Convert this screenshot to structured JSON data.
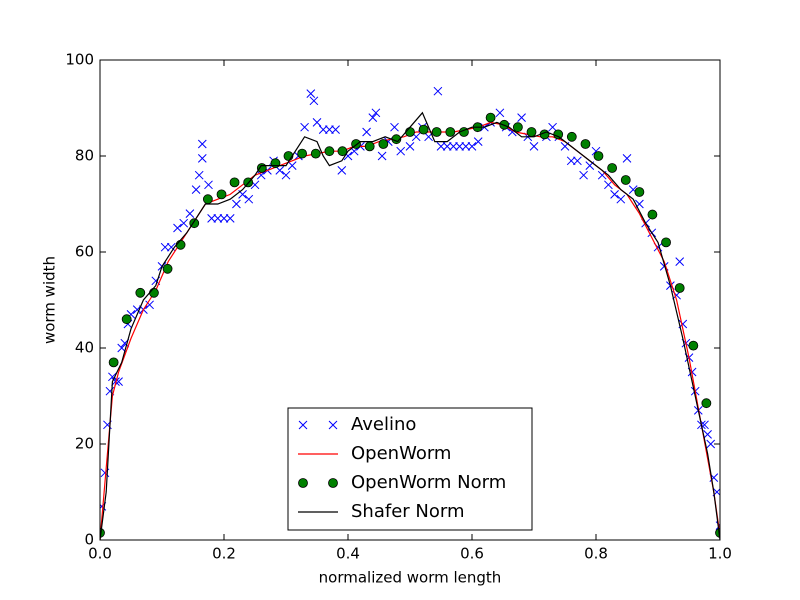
{
  "chart_data": {
    "type": "line",
    "xlabel": "normalized worm length",
    "ylabel": "worm width",
    "xlim": [
      0,
      1
    ],
    "ylim": [
      0,
      100
    ],
    "xticks": [
      {
        "value": 0,
        "label": "0.0"
      },
      0.2,
      0.4,
      0.6,
      0.8,
      {
        "value": 1,
        "label": "1.0"
      }
    ],
    "yticks": [
      0,
      20,
      40,
      60,
      80,
      100
    ],
    "legend": "lower center",
    "series": [
      {
        "name": "Avelino",
        "color": "#0000ff",
        "style": "x",
        "x": [
          0.003,
          0.008,
          0.012,
          0.016,
          0.02,
          0.025,
          0.03,
          0.035,
          0.04,
          0.045,
          0.05,
          0.06,
          0.07,
          0.08,
          0.09,
          0.1,
          0.105,
          0.115,
          0.125,
          0.135,
          0.145,
          0.155,
          0.16,
          0.165,
          0.165,
          0.175,
          0.18,
          0.19,
          0.2,
          0.21,
          0.22,
          0.23,
          0.24,
          0.25,
          0.26,
          0.27,
          0.28,
          0.29,
          0.3,
          0.31,
          0.32,
          0.33,
          0.34,
          0.345,
          0.35,
          0.36,
          0.37,
          0.38,
          0.39,
          0.4,
          0.41,
          0.42,
          0.43,
          0.44,
          0.445,
          0.455,
          0.465,
          0.475,
          0.485,
          0.5,
          0.51,
          0.52,
          0.53,
          0.545,
          0.55,
          0.56,
          0.57,
          0.58,
          0.59,
          0.6,
          0.61,
          0.62,
          0.63,
          0.645,
          0.655,
          0.665,
          0.68,
          0.69,
          0.7,
          0.72,
          0.73,
          0.74,
          0.75,
          0.76,
          0.77,
          0.78,
          0.79,
          0.8,
          0.81,
          0.82,
          0.83,
          0.84,
          0.85,
          0.86,
          0.87,
          0.88,
          0.89,
          0.9,
          0.91,
          0.92,
          0.93,
          0.935,
          0.94,
          0.945,
          0.95,
          0.955,
          0.96,
          0.965,
          0.97,
          0.975,
          0.98,
          0.985,
          0.99,
          0.995,
          1.0
        ],
        "values": [
          7,
          14,
          24,
          31,
          34,
          33,
          33,
          40,
          41,
          45,
          47,
          48,
          48,
          49,
          54,
          57,
          61,
          61,
          65,
          66,
          68,
          73,
          76,
          82.5,
          79.5,
          74,
          67,
          67,
          67,
          67,
          70,
          72,
          71,
          74,
          76,
          77,
          79,
          77,
          76,
          78,
          80,
          86,
          93,
          91.5,
          87,
          85.5,
          85.5,
          85.5,
          77,
          80,
          81,
          82,
          85,
          88,
          89,
          80,
          83,
          86,
          81,
          82,
          84,
          86,
          84,
          93.5,
          82,
          82,
          82,
          82,
          82,
          82,
          83,
          86,
          87,
          89,
          86,
          85,
          88,
          84,
          82,
          84,
          86,
          84,
          82,
          79,
          79,
          76,
          78,
          81,
          76,
          74,
          72,
          71,
          79.5,
          73,
          70,
          66,
          64,
          61,
          57,
          53,
          51,
          58,
          45,
          41,
          38,
          35,
          31,
          27,
          24,
          24,
          22,
          20,
          13,
          10,
          3
        ]
      },
      {
        "name": "OpenWorm",
        "color": "#ff0000",
        "style": "line",
        "x": [
          0,
          0.01,
          0.02,
          0.03,
          0.05,
          0.07,
          0.09,
          0.11,
          0.13,
          0.15,
          0.17,
          0.19,
          0.21,
          0.23,
          0.25,
          0.27,
          0.29,
          0.31,
          0.33,
          0.35,
          0.37,
          0.39,
          0.41,
          0.43,
          0.45,
          0.47,
          0.49,
          0.51,
          0.53,
          0.55,
          0.57,
          0.59,
          0.61,
          0.63,
          0.65,
          0.67,
          0.69,
          0.71,
          0.73,
          0.75,
          0.77,
          0.79,
          0.81,
          0.83,
          0.85,
          0.87,
          0.89,
          0.91,
          0.93,
          0.95,
          0.97,
          0.99,
          1.0
        ],
        "values": [
          0,
          15,
          30,
          35,
          42,
          48,
          52,
          58,
          62,
          66,
          70,
          71,
          72,
          74,
          76,
          77,
          78,
          79,
          80,
          80.5,
          81,
          81,
          82,
          82,
          83,
          83.5,
          84,
          85,
          85,
          85,
          85,
          85.5,
          86,
          87,
          86.5,
          85,
          84.5,
          84,
          84,
          83,
          81,
          79,
          77,
          74,
          72,
          68,
          63,
          58,
          50,
          38,
          24,
          10,
          1
        ]
      },
      {
        "name": "OpenWorm Norm",
        "color": "#008000",
        "style": "o",
        "x": [
          0,
          0.022,
          0.043,
          0.065,
          0.087,
          0.109,
          0.13,
          0.152,
          0.174,
          0.196,
          0.217,
          0.239,
          0.261,
          0.283,
          0.304,
          0.326,
          0.348,
          0.37,
          0.391,
          0.413,
          0.435,
          0.457,
          0.478,
          0.5,
          0.522,
          0.543,
          0.565,
          0.587,
          0.609,
          0.63,
          0.652,
          0.674,
          0.696,
          0.717,
          0.739,
          0.761,
          0.783,
          0.804,
          0.826,
          0.848,
          0.87,
          0.891,
          0.913,
          0.935,
          0.957,
          0.978,
          1.0
        ],
        "values": [
          1.5,
          37,
          46,
          51.5,
          51.5,
          56.5,
          61.5,
          66,
          71,
          72,
          74.5,
          74.5,
          77.5,
          78.5,
          80,
          80.5,
          80.5,
          81,
          81,
          82.5,
          82,
          82.5,
          83.5,
          85,
          85.5,
          85,
          85,
          85,
          86,
          88,
          86.5,
          86,
          85,
          84.5,
          84.5,
          84,
          82.5,
          80,
          77.5,
          75,
          72.5,
          67.8,
          62,
          52.5,
          40.5,
          28.5,
          1.5
        ]
      },
      {
        "name": "Shafer Norm",
        "color": "#000000",
        "style": "line",
        "x": [
          0,
          0.01,
          0.02,
          0.035,
          0.05,
          0.07,
          0.09,
          0.1,
          0.12,
          0.14,
          0.16,
          0.17,
          0.19,
          0.21,
          0.23,
          0.25,
          0.26,
          0.28,
          0.3,
          0.31,
          0.33,
          0.35,
          0.36,
          0.37,
          0.39,
          0.4,
          0.42,
          0.44,
          0.46,
          0.48,
          0.5,
          0.52,
          0.54,
          0.56,
          0.58,
          0.6,
          0.62,
          0.64,
          0.66,
          0.68,
          0.7,
          0.72,
          0.74,
          0.76,
          0.78,
          0.8,
          0.82,
          0.84,
          0.86,
          0.88,
          0.9,
          0.92,
          0.94,
          0.96,
          0.98,
          0.99,
          1.0
        ],
        "values": [
          0,
          10,
          33,
          37,
          44,
          50,
          53,
          57,
          61,
          64,
          68,
          70,
          70,
          71,
          73,
          76,
          78,
          78,
          78,
          80,
          84,
          83,
          80,
          78,
          79,
          81,
          83,
          83,
          84,
          83,
          86,
          89,
          83,
          83,
          85,
          86,
          86,
          87,
          86,
          84,
          84,
          85,
          84,
          82,
          80,
          78,
          76,
          73,
          71,
          66,
          62,
          53,
          42,
          30,
          18,
          10,
          0
        ]
      }
    ]
  }
}
